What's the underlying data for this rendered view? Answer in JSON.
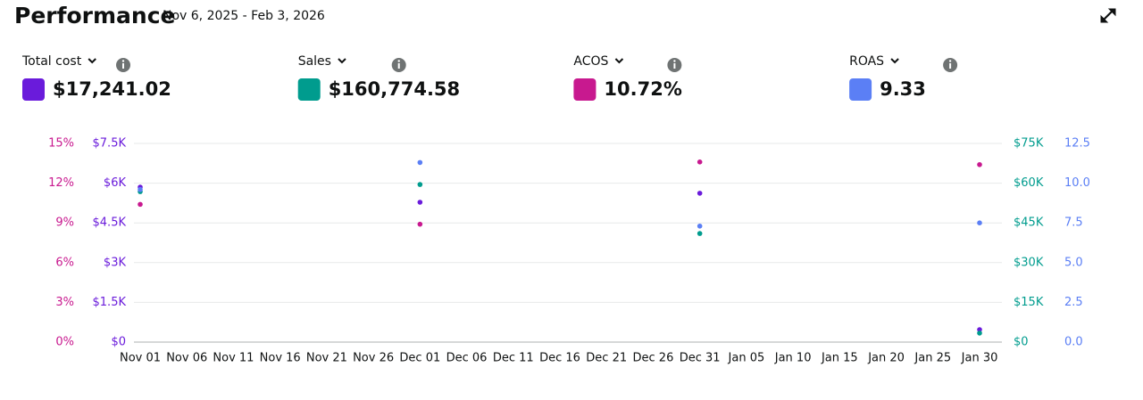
{
  "header": {
    "title": "Performance",
    "date_range": "Nov 6, 2025 - Feb 3, 2026"
  },
  "chart_data": {
    "type": "scatter",
    "categories": [
      "Nov 01",
      "Nov 06",
      "Nov 11",
      "Nov 16",
      "Nov 21",
      "Nov 26",
      "Dec 01",
      "Dec 06",
      "Dec 11",
      "Dec 16",
      "Dec 21",
      "Dec 26",
      "Dec 31",
      "Jan 05",
      "Jan 10",
      "Jan 15",
      "Jan 20",
      "Jan 25",
      "Jan 30"
    ],
    "series": [
      {
        "name": "Total cost",
        "total": "$17,241.02",
        "color": "#6a1bdb",
        "axis": "y",
        "values": [
          5850,
          null,
          null,
          null,
          null,
          null,
          5280,
          null,
          null,
          null,
          null,
          null,
          5620,
          null,
          null,
          null,
          null,
          null,
          470
        ]
      },
      {
        "name": "Sales",
        "total": "$160,774.58",
        "color": "#009c8e",
        "axis": "y2",
        "values": [
          56800,
          null,
          null,
          null,
          null,
          null,
          59500,
          null,
          null,
          null,
          null,
          null,
          41000,
          null,
          null,
          null,
          null,
          null,
          3400
        ]
      },
      {
        "name": "ACOS",
        "total": "10.72%",
        "color": "#c8198f",
        "axis": "y3",
        "values": [
          10.4,
          null,
          null,
          null,
          null,
          null,
          8.9,
          null,
          null,
          null,
          null,
          null,
          13.6,
          null,
          null,
          null,
          null,
          null,
          13.4
        ]
      },
      {
        "name": "ROAS",
        "total": "9.33",
        "color": "#5b7ff5",
        "axis": "y4",
        "values": [
          9.6,
          null,
          null,
          null,
          null,
          null,
          11.3,
          null,
          null,
          null,
          null,
          null,
          7.3,
          null,
          null,
          null,
          null,
          null,
          7.5
        ]
      }
    ],
    "ylim": [
      0,
      7500
    ],
    "yticks": [
      {
        "value": 0,
        "label": "$0"
      },
      {
        "value": 1500,
        "label": "$1.5K"
      },
      {
        "value": 3000,
        "label": "$3K"
      },
      {
        "value": 4500,
        "label": "$4.5K"
      },
      {
        "value": 6000,
        "label": "$6K"
      },
      {
        "value": 7500,
        "label": "$7.5K"
      }
    ],
    "y2lim": [
      0,
      75000
    ],
    "y2ticks": [
      {
        "value": 0,
        "label": "$0"
      },
      {
        "value": 15000,
        "label": "$15K"
      },
      {
        "value": 30000,
        "label": "$30K"
      },
      {
        "value": 45000,
        "label": "$45K"
      },
      {
        "value": 60000,
        "label": "$60K"
      },
      {
        "value": 75000,
        "label": "$75K"
      }
    ],
    "y3lim": [
      0,
      15
    ],
    "y3ticks": [
      {
        "value": 0,
        "label": "0%"
      },
      {
        "value": 3,
        "label": "3%"
      },
      {
        "value": 6,
        "label": "6%"
      },
      {
        "value": 9,
        "label": "9%"
      },
      {
        "value": 12,
        "label": "12%"
      },
      {
        "value": 15,
        "label": "15%"
      }
    ],
    "y4lim": [
      0,
      12.5
    ],
    "y4ticks": [
      {
        "value": 0,
        "label": "0.0"
      },
      2.5,
      {
        "value": 5,
        "label": "5.0"
      },
      7.5,
      {
        "value": 10,
        "label": "10.0"
      },
      12.5
    ],
    "grid": true
  }
}
